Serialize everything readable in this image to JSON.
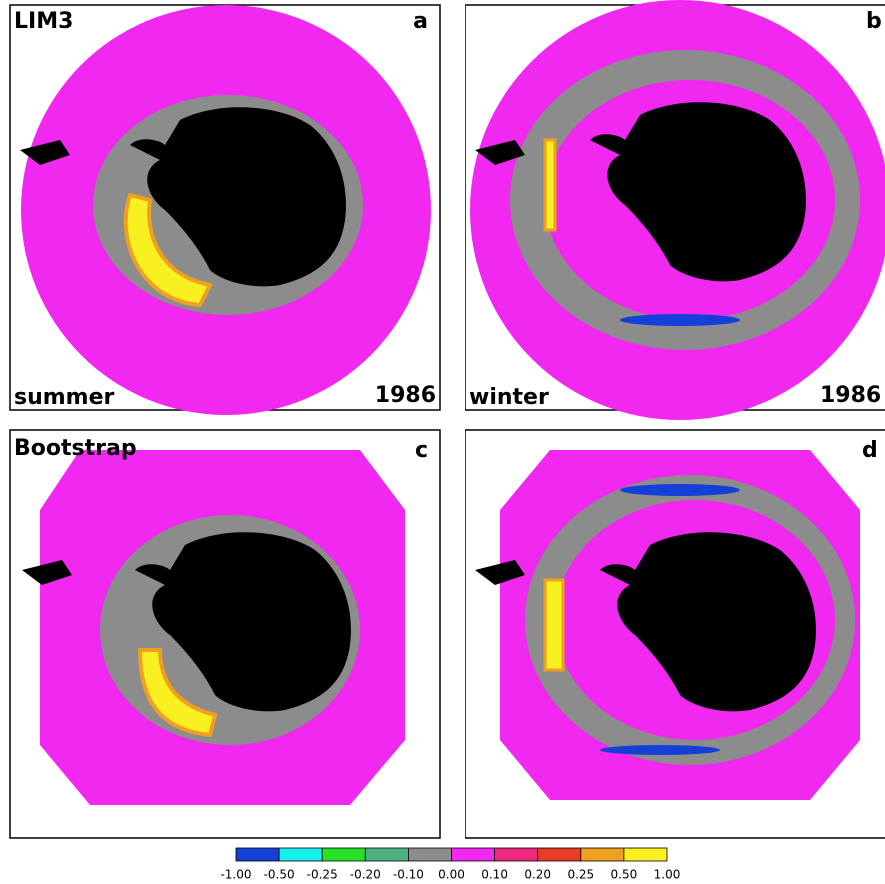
{
  "panels": [
    {
      "letter": "a",
      "title": "LIM3",
      "season": "summer",
      "year": "1986"
    },
    {
      "letter": "b",
      "season": "winter",
      "year": "1986"
    },
    {
      "letter": "c",
      "title": "Bootstrap"
    },
    {
      "letter": "d"
    }
  ],
  "colorbar": {
    "ticks": [
      "-1.00",
      "-0.50",
      "-0.25",
      "-0.20",
      "-0.10",
      "0.00",
      "0.10",
      "0.20",
      "0.25",
      "0.50",
      "1.00"
    ],
    "colors": [
      "#1440d8",
      "#18f0f0",
      "#28e028",
      "#50b080",
      "#8c8c8c",
      "#f028f0",
      "#f0287c",
      "#e83c28",
      "#f0a020",
      "#f8f020"
    ]
  }
}
